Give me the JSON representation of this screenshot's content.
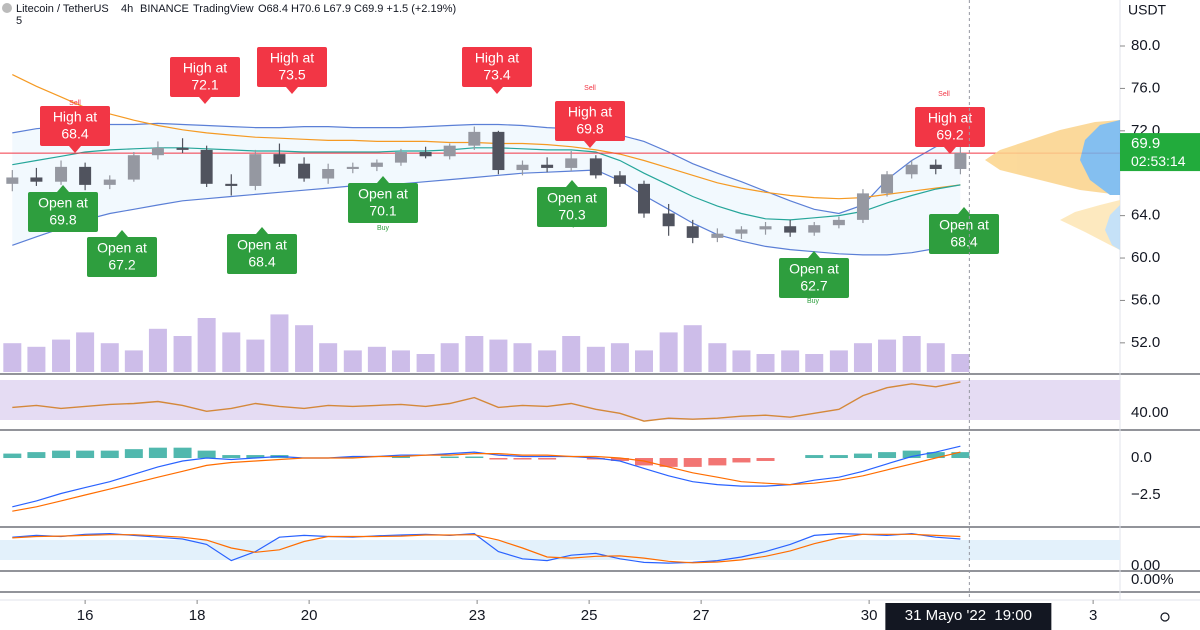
{
  "header": {
    "symbol": "Litecoin / TetherUS",
    "interval": "4h",
    "exchange": "BINANCE",
    "brand": "TradingView",
    "ohlc": "O68.4 H70.6 L67.9 C69.9 +1.5 (+2.19%)",
    "indicator_count": "5"
  },
  "chart_data": {
    "type": "candlestick",
    "up_color": "#9598a1",
    "down_color": "#50535e",
    "x": [
      14.7,
      15.13,
      15.57,
      16.0,
      16.44,
      16.87,
      17.3,
      17.74,
      18.17,
      18.61,
      19.04,
      19.47,
      19.91,
      20.34,
      20.78,
      21.21,
      21.64,
      22.08,
      22.51,
      22.95,
      23.38,
      23.81,
      24.25,
      24.68,
      25.12,
      25.55,
      25.98,
      26.42,
      26.85,
      27.29,
      27.72,
      28.15,
      28.59,
      29.02,
      29.46,
      29.89,
      30.32,
      30.76,
      31.19,
      31.63
    ],
    "open": [
      67.0,
      67.6,
      67.2,
      68.6,
      66.9,
      67.4,
      69.7,
      70.4,
      70.2,
      67.0,
      66.8,
      69.8,
      68.9,
      67.5,
      68.4,
      68.6,
      69.0,
      70.0,
      69.6,
      70.6,
      71.9,
      68.3,
      68.8,
      68.5,
      69.4,
      67.8,
      67.0,
      64.2,
      63.0,
      61.9,
      62.3,
      62.7,
      63.0,
      62.4,
      63.1,
      63.6,
      66.1,
      67.9,
      68.8,
      68.4
    ],
    "high": [
      68.3,
      68.5,
      69.2,
      69.0,
      67.8,
      70.0,
      71.0,
      71.3,
      70.6,
      67.9,
      70.2,
      70.8,
      69.5,
      68.9,
      69.0,
      69.3,
      70.3,
      70.5,
      70.8,
      72.4,
      72.0,
      69.2,
      69.5,
      70.1,
      69.7,
      68.2,
      67.3,
      65.1,
      63.6,
      62.8,
      63.0,
      63.4,
      63.6,
      63.4,
      63.9,
      66.5,
      68.2,
      69.2,
      69.3,
      70.6
    ],
    "low": [
      66.3,
      66.8,
      66.9,
      66.4,
      66.5,
      67.2,
      69.3,
      69.9,
      66.7,
      65.9,
      66.4,
      68.6,
      67.2,
      67.0,
      68.0,
      68.2,
      68.7,
      69.4,
      69.3,
      70.2,
      67.9,
      67.8,
      68.1,
      68.2,
      67.5,
      66.7,
      63.8,
      62.1,
      61.4,
      61.5,
      61.8,
      62.2,
      62.0,
      62.1,
      62.8,
      63.3,
      65.8,
      67.5,
      67.9,
      67.9
    ],
    "close": [
      67.6,
      67.2,
      68.6,
      66.9,
      67.4,
      69.7,
      70.4,
      70.2,
      67.0,
      66.8,
      69.8,
      68.9,
      67.5,
      68.4,
      68.6,
      69.0,
      70.0,
      69.6,
      70.6,
      71.9,
      68.3,
      68.8,
      68.5,
      69.4,
      67.8,
      67.0,
      64.2,
      63.0,
      61.9,
      62.3,
      62.7,
      63.0,
      62.4,
      63.1,
      63.6,
      66.1,
      67.9,
      68.8,
      68.4,
      69.9
    ],
    "xlim": [
      14.48,
      34.48
    ],
    "xticks": [
      16,
      18,
      20,
      23,
      25,
      27,
      30,
      {
        "value": 34,
        "label": "3"
      }
    ],
    "crosshair": {
      "value": 31.79,
      "label": "31 Mayo '22  19:00"
    },
    "ylim": [
      49.25,
      84.34
    ],
    "yticks": [
      {
        "value": 80,
        "label": "80.0"
      },
      {
        "value": 76,
        "label": "76.0"
      },
      {
        "value": 72,
        "label": "72.0"
      },
      {
        "value": 64,
        "label": "64.0"
      },
      {
        "value": 60,
        "label": "60.0"
      },
      {
        "value": 56,
        "label": "56.0"
      },
      {
        "value": 52,
        "label": "52.0"
      }
    ],
    "y_unit": "USDT",
    "last_price": 69.9,
    "last_price_color": "#22ab3c",
    "countdown": "02:53:14",
    "overlays": [
      {
        "color": "#5b7fd6",
        "values": [
          71.8,
          72.2,
          72.4,
          72.5,
          72.6,
          72.6,
          72.7,
          72.6,
          72.5,
          72.4,
          72.3,
          72.3,
          72.4,
          72.4,
          72.3,
          72.3,
          72.3,
          72.4,
          72.5,
          72.6,
          72.6,
          72.5,
          72.3,
          72.2,
          72.0,
          71.6,
          71.0,
          70.0,
          68.9,
          68.0,
          67.2,
          66.3,
          65.4,
          64.6,
          64.2,
          65.0,
          67.4,
          69.2,
          70.5,
          71.1
        ]
      },
      {
        "color": "#5b7fd6",
        "values": [
          61.2,
          62.0,
          62.8,
          63.6,
          64.2,
          64.6,
          65.0,
          65.4,
          65.6,
          65.8,
          66.0,
          66.2,
          66.4,
          66.6,
          66.8,
          66.9,
          67.0,
          67.2,
          67.4,
          67.6,
          67.8,
          68.0,
          68.1,
          68.2,
          68.3,
          67.3,
          65.9,
          64.6,
          63.3,
          62.2,
          61.6,
          61.1,
          60.8,
          60.6,
          60.4,
          60.3,
          60.3,
          60.5,
          60.9,
          61.2
        ]
      },
      {
        "color": "#f59a23",
        "values": [
          77.3,
          76.2,
          75.2,
          74.2,
          73.6,
          73.0,
          72.5,
          72.1,
          71.8,
          71.6,
          71.4,
          71.3,
          71.2,
          71.1,
          71.1,
          71.0,
          71.0,
          71.0,
          70.9,
          70.9,
          70.8,
          70.8,
          70.7,
          70.5,
          70.2,
          69.8,
          69.2,
          68.5,
          67.8,
          67.1,
          66.6,
          66.2,
          65.9,
          65.7,
          65.6,
          65.7,
          66.0,
          66.3,
          66.6,
          66.9
        ]
      },
      {
        "color": "#26a69a",
        "values": [
          68.8,
          69.2,
          69.6,
          70.0,
          70.2,
          70.3,
          70.4,
          70.4,
          70.3,
          70.2,
          70.1,
          70.1,
          70.0,
          70.0,
          70.0,
          70.0,
          70.1,
          70.1,
          70.2,
          70.4,
          70.4,
          70.3,
          70.2,
          70.2,
          70.0,
          69.2,
          68.0,
          66.9,
          65.8,
          64.9,
          64.2,
          63.7,
          63.6,
          63.8,
          64.0,
          64.4,
          65.2,
          65.9,
          66.5,
          66.9
        ]
      }
    ],
    "volume": {
      "color": "#cdbde9",
      "ylim": [
        0,
        100
      ],
      "values": [
        40,
        35,
        45,
        55,
        40,
        30,
        60,
        50,
        75,
        55,
        45,
        80,
        65,
        40,
        30,
        35,
        30,
        25,
        40,
        50,
        45,
        40,
        30,
        50,
        35,
        40,
        30,
        55,
        65,
        40,
        30,
        25,
        30,
        25,
        30,
        40,
        45,
        50,
        40,
        25
      ]
    },
    "callouts": [
      {
        "text": "High at",
        "value": 68.4,
        "color": "#f23645"
      },
      {
        "text": "High at",
        "value": 72.1,
        "color": "#f23645"
      },
      {
        "text": "High at",
        "value": 73.5,
        "color": "#f23645"
      },
      {
        "text": "High at",
        "value": 73.4,
        "color": "#f23645"
      },
      {
        "text": "High at",
        "value": 69.8,
        "color": "#f23645"
      },
      {
        "text": "High at",
        "value": 69.2,
        "color": "#f23645"
      },
      {
        "text": "Open at",
        "value": 69.8,
        "color": "#2e9e3e"
      },
      {
        "text": "Open at",
        "value": 67.2,
        "color": "#2e9e3e"
      },
      {
        "text": "Open at",
        "value": 68.4,
        "color": "#2e9e3e"
      },
      {
        "text": "Open at",
        "value": 70.1,
        "color": "#2e9e3e"
      },
      {
        "text": "Open at",
        "value": 70.3,
        "color": "#2e9e3e"
      },
      {
        "text": "Open at",
        "value": 62.7,
        "color": "#2e9e3e"
      },
      {
        "text": "Open at",
        "value": 68.4,
        "color": "#2e9e3e"
      }
    ],
    "signals": [
      {
        "text": "Sell",
        "color": "#f23645"
      },
      {
        "text": "Sell",
        "color": "#f23645"
      },
      {
        "text": "Sell",
        "color": "#f23645"
      },
      {
        "text": "Buy",
        "color": "#2e9e3e"
      },
      {
        "text": "Buy",
        "color": "#2e9e3e"
      },
      {
        "text": "Buy",
        "color": "#2e9e3e"
      }
    ],
    "rsi": {
      "color": "#d4883a",
      "band_color": "#e5dcf3",
      "ylim": [
        25,
        80
      ],
      "yticks": [
        {
          "value": 40,
          "label": "40.00"
        }
      ],
      "values": [
        46,
        48,
        45,
        47,
        49,
        50,
        52,
        48,
        42,
        45,
        50,
        47,
        45,
        48,
        47,
        48,
        49,
        47,
        50,
        56,
        46,
        48,
        47,
        50,
        44,
        40,
        32,
        35,
        34,
        35,
        37,
        38,
        36,
        40,
        44,
        58,
        66,
        70,
        67,
        72
      ]
    },
    "macd": {
      "line_color": "#2962ff",
      "signal_color": "#ff6d00",
      "up_color": "#26a69a",
      "down_color": "#ef5350",
      "ylim": [
        -4.53,
        1.76
      ],
      "yticks": [
        {
          "value": 0,
          "label": "0.0"
        },
        {
          "value": -2.5,
          "label": "−2.5"
        }
      ],
      "macd": [
        -3.3,
        -2.9,
        -2.4,
        -2.0,
        -1.6,
        -1.1,
        -0.6,
        -0.2,
        0.0,
        -0.1,
        0.0,
        0.1,
        0.0,
        0.0,
        0.1,
        0.1,
        0.2,
        0.2,
        0.3,
        0.4,
        0.2,
        0.1,
        0.1,
        0.1,
        0.0,
        -0.2,
        -0.7,
        -1.2,
        -1.6,
        -1.8,
        -1.9,
        -1.9,
        -1.8,
        -1.5,
        -1.3,
        -0.9,
        -0.4,
        0.1,
        0.4,
        0.8
      ],
      "signal": [
        -3.6,
        -3.3,
        -2.9,
        -2.5,
        -2.1,
        -1.7,
        -1.3,
        -0.9,
        -0.5,
        -0.3,
        -0.2,
        -0.1,
        0.0,
        0.0,
        0.0,
        0.1,
        0.1,
        0.2,
        0.2,
        0.3,
        0.3,
        0.2,
        0.2,
        0.1,
        0.1,
        0.0,
        -0.2,
        -0.6,
        -1.0,
        -1.3,
        -1.6,
        -1.7,
        -1.8,
        -1.7,
        -1.5,
        -1.2,
        -0.8,
        -0.4,
        0.0,
        0.4
      ],
      "histogram": [
        0.3,
        0.4,
        0.5,
        0.5,
        0.5,
        0.6,
        0.7,
        0.7,
        0.5,
        0.2,
        0.2,
        0.2,
        0.0,
        0.0,
        0.1,
        0.0,
        0.1,
        0.0,
        0.1,
        0.1,
        -0.1,
        -0.1,
        -0.1,
        0.0,
        -0.1,
        -0.2,
        -0.5,
        -0.6,
        -0.6,
        -0.5,
        -0.3,
        -0.2,
        0.0,
        0.2,
        0.2,
        0.3,
        0.4,
        0.5,
        0.4,
        0.4
      ]
    },
    "stoch": {
      "k_color": "#2962ff",
      "d_color": "#ff6d00",
      "band_color": "#e3f1fb",
      "ylim": [
        0,
        100
      ],
      "yticks": [
        {
          "value": 0,
          "label": "0.00"
        }
      ],
      "k": [
        80,
        85,
        82,
        88,
        90,
        85,
        80,
        75,
        60,
        15,
        40,
        80,
        85,
        82,
        80,
        84,
        86,
        88,
        85,
        90,
        40,
        20,
        15,
        30,
        35,
        20,
        10,
        8,
        10,
        15,
        25,
        40,
        60,
        85,
        90,
        88,
        85,
        90,
        80,
        75
      ],
      "d": [
        78,
        82,
        83,
        85,
        87,
        87,
        84,
        80,
        72,
        50,
        38,
        45,
        68,
        82,
        82,
        82,
        83,
        86,
        86,
        87,
        72,
        50,
        25,
        22,
        27,
        28,
        22,
        13,
        9,
        11,
        17,
        27,
        42,
        62,
        78,
        88,
        88,
        88,
        85,
        82
      ]
    },
    "percent_pane": {
      "ylim": [
        0,
        100
      ],
      "yticks": [
        {
          "value": 0,
          "label": "0.00%"
        }
      ]
    }
  }
}
